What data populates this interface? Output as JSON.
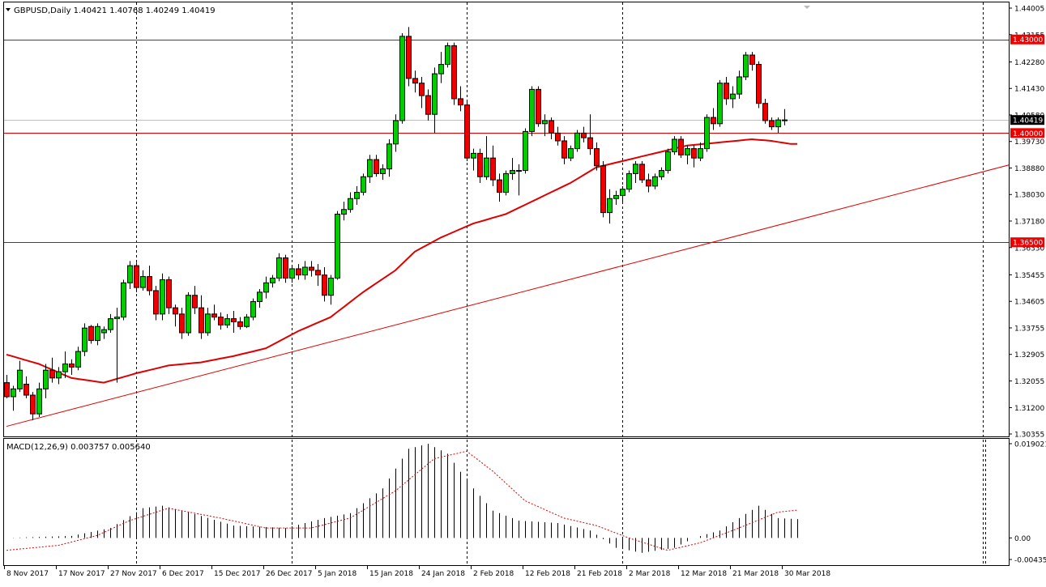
{
  "chart_data": {
    "type": "candlestick",
    "symbol": "GBPUSD",
    "timeframe": "Daily",
    "header": "GBPUSD,Daily  1.40421 1.40768 1.40249 1.40419",
    "ohlc_last": {
      "open": 1.40421,
      "high": 1.40768,
      "low": 1.40249,
      "close": 1.40419
    },
    "price_axis": {
      "range": [
        1.30355,
        1.44005
      ],
      "ticks": [
        "1.44005",
        "1.43155",
        "1.42280",
        "1.41430",
        "1.40580",
        "1.39730",
        "1.38880",
        "1.38030",
        "1.37180",
        "1.36330",
        "1.35455",
        "1.34605",
        "1.33755",
        "1.32905",
        "1.32055",
        "1.31200",
        "1.30355"
      ]
    },
    "time_axis": {
      "labels": [
        "8 Nov 2017",
        "17 Nov 2017",
        "27 Nov 2017",
        "6 Dec 2017",
        "15 Dec 2017",
        "26 Dec 2017",
        "5 Jan 2018",
        "15 Jan 2018",
        "24 Jan 2018",
        "2 Feb 2018",
        "12 Feb 2018",
        "21 Feb 2018",
        "2 Mar 2018",
        "12 Mar 2018",
        "21 Mar 2018",
        "30 Mar 2018"
      ]
    },
    "horizontal_levels": [
      {
        "price": 1.43,
        "label": "1.43000"
      },
      {
        "price": 1.4,
        "label": "1.40000"
      },
      {
        "price": 1.365,
        "label": "1.36500"
      }
    ],
    "current_price_label": "1.40419",
    "trendline": {
      "start": {
        "bar": 0,
        "price": 1.306
      },
      "end": {
        "bar": 120,
        "price": 1.371
      }
    },
    "candles": [
      [
        1.32,
        1.3225,
        1.315,
        1.3155
      ],
      [
        1.3155,
        1.319,
        1.311,
        1.318
      ],
      [
        1.318,
        1.327,
        1.317,
        1.324
      ],
      [
        1.3195,
        1.322,
        1.315,
        1.316
      ],
      [
        1.316,
        1.317,
        1.308,
        1.31
      ],
      [
        1.31,
        1.32,
        1.309,
        1.318
      ],
      [
        1.318,
        1.326,
        1.315,
        1.324
      ],
      [
        1.324,
        1.328,
        1.32,
        1.3215
      ],
      [
        1.3215,
        1.325,
        1.3195,
        1.3235
      ],
      [
        1.3235,
        1.33,
        1.3215,
        1.326
      ],
      [
        1.326,
        1.3275,
        1.3225,
        1.325
      ],
      [
        1.325,
        1.3315,
        1.324,
        1.33
      ],
      [
        1.33,
        1.339,
        1.3285,
        1.3375
      ],
      [
        1.338,
        1.3385,
        1.3325,
        1.3335
      ],
      [
        1.3335,
        1.339,
        1.332,
        1.338
      ],
      [
        1.336,
        1.338,
        1.334,
        1.337
      ],
      [
        1.337,
        1.342,
        1.336,
        1.3405
      ],
      [
        1.3405,
        1.344,
        1.32,
        1.341
      ],
      [
        1.341,
        1.353,
        1.34,
        1.352
      ],
      [
        1.352,
        1.359,
        1.35,
        1.3575
      ],
      [
        1.3575,
        1.3585,
        1.349,
        1.3505
      ],
      [
        1.3505,
        1.356,
        1.3495,
        1.354
      ],
      [
        1.354,
        1.3575,
        1.348,
        1.3495
      ],
      [
        1.3495,
        1.351,
        1.34,
        1.342
      ],
      [
        1.342,
        1.355,
        1.34,
        1.353
      ],
      [
        1.353,
        1.354,
        1.342,
        1.344
      ],
      [
        1.344,
        1.345,
        1.338,
        1.342
      ],
      [
        1.342,
        1.344,
        1.334,
        1.336
      ],
      [
        1.336,
        1.349,
        1.335,
        1.348
      ],
      [
        1.348,
        1.351,
        1.342,
        1.344
      ],
      [
        1.344,
        1.348,
        1.334,
        1.336
      ],
      [
        1.336,
        1.344,
        1.335,
        1.342
      ],
      [
        1.342,
        1.345,
        1.34,
        1.341
      ],
      [
        1.341,
        1.3425,
        1.337,
        1.3385
      ],
      [
        1.3385,
        1.342,
        1.3375,
        1.3405
      ],
      [
        1.3405,
        1.343,
        1.336,
        1.3395
      ],
      [
        1.3395,
        1.341,
        1.337,
        1.338
      ],
      [
        1.338,
        1.342,
        1.3375,
        1.341
      ],
      [
        1.341,
        1.347,
        1.34,
        1.346
      ],
      [
        1.346,
        1.35,
        1.344,
        1.349
      ],
      [
        1.349,
        1.354,
        1.347,
        1.352
      ],
      [
        1.352,
        1.3545,
        1.3505,
        1.3535
      ],
      [
        1.3535,
        1.3615,
        1.3525,
        1.36
      ],
      [
        1.36,
        1.361,
        1.352,
        1.3535
      ],
      [
        1.3535,
        1.3575,
        1.352,
        1.3565
      ],
      [
        1.3565,
        1.358,
        1.353,
        1.3545
      ],
      [
        1.3545,
        1.359,
        1.353,
        1.357
      ],
      [
        1.357,
        1.359,
        1.354,
        1.356
      ],
      [
        1.356,
        1.358,
        1.351,
        1.3545
      ],
      [
        1.3545,
        1.357,
        1.346,
        1.348
      ],
      [
        1.348,
        1.3545,
        1.345,
        1.3535
      ],
      [
        1.3535,
        1.375,
        1.353,
        1.374
      ],
      [
        1.374,
        1.378,
        1.372,
        1.3755
      ],
      [
        1.3755,
        1.381,
        1.3745,
        1.379
      ],
      [
        1.379,
        1.383,
        1.377,
        1.381
      ],
      [
        1.381,
        1.387,
        1.38,
        1.386
      ],
      [
        1.386,
        1.393,
        1.384,
        1.3915
      ],
      [
        1.3915,
        1.393,
        1.386,
        1.387
      ],
      [
        1.387,
        1.39,
        1.385,
        1.3885
      ],
      [
        1.3885,
        1.398,
        1.386,
        1.3965
      ],
      [
        1.3965,
        1.406,
        1.394,
        1.404
      ],
      [
        1.404,
        1.432,
        1.403,
        1.431
      ],
      [
        1.431,
        1.434,
        1.415,
        1.4175
      ],
      [
        1.4175,
        1.42,
        1.413,
        1.416
      ],
      [
        1.416,
        1.418,
        1.408,
        1.412
      ],
      [
        1.412,
        1.414,
        1.404,
        1.406
      ],
      [
        1.406,
        1.421,
        1.4,
        1.419
      ],
      [
        1.419,
        1.426,
        1.416,
        1.422
      ],
      [
        1.422,
        1.429,
        1.421,
        1.428
      ],
      [
        1.428,
        1.429,
        1.409,
        1.411
      ],
      [
        1.411,
        1.415,
        1.407,
        1.409
      ],
      [
        1.409,
        1.41,
        1.391,
        1.392
      ],
      [
        1.392,
        1.395,
        1.388,
        1.3935
      ],
      [
        1.3935,
        1.395,
        1.384,
        1.386
      ],
      [
        1.386,
        1.399,
        1.385,
        1.392
      ],
      [
        1.392,
        1.396,
        1.383,
        1.385
      ],
      [
        1.385,
        1.387,
        1.378,
        1.381
      ],
      [
        1.381,
        1.388,
        1.38,
        1.387
      ],
      [
        1.387,
        1.392,
        1.385,
        1.388
      ],
      [
        1.388,
        1.39,
        1.38,
        1.388
      ],
      [
        1.388,
        1.4015,
        1.387,
        1.4005
      ],
      [
        1.4005,
        1.415,
        1.399,
        1.414
      ],
      [
        1.414,
        1.415,
        1.402,
        1.403
      ],
      [
        1.403,
        1.406,
        1.399,
        1.404
      ],
      [
        1.404,
        1.405,
        1.398,
        1.4
      ],
      [
        1.4,
        1.402,
        1.396,
        1.3975
      ],
      [
        1.3975,
        1.399,
        1.39,
        1.392
      ],
      [
        1.392,
        1.396,
        1.391,
        1.395
      ],
      [
        1.395,
        1.401,
        1.394,
        1.4
      ],
      [
        1.4,
        1.402,
        1.397,
        1.3985
      ],
      [
        1.3985,
        1.406,
        1.393,
        1.395
      ],
      [
        1.395,
        1.397,
        1.388,
        1.3895
      ],
      [
        1.3895,
        1.391,
        1.373,
        1.3745
      ],
      [
        1.3745,
        1.382,
        1.371,
        1.379
      ],
      [
        1.379,
        1.3815,
        1.377,
        1.38
      ],
      [
        1.38,
        1.383,
        1.378,
        1.382
      ],
      [
        1.382,
        1.388,
        1.381,
        1.387
      ],
      [
        1.387,
        1.391,
        1.384,
        1.39
      ],
      [
        1.39,
        1.391,
        1.384,
        1.385
      ],
      [
        1.385,
        1.387,
        1.381,
        1.383
      ],
      [
        1.383,
        1.387,
        1.382,
        1.386
      ],
      [
        1.386,
        1.389,
        1.385,
        1.388
      ],
      [
        1.388,
        1.395,
        1.387,
        1.394
      ],
      [
        1.394,
        1.399,
        1.393,
        1.398
      ],
      [
        1.398,
        1.399,
        1.392,
        1.393
      ],
      [
        1.393,
        1.396,
        1.39,
        1.395
      ],
      [
        1.395,
        1.396,
        1.389,
        1.392
      ],
      [
        1.392,
        1.397,
        1.391,
        1.395
      ],
      [
        1.395,
        1.406,
        1.394,
        1.405
      ],
      [
        1.405,
        1.408,
        1.401,
        1.403
      ],
      [
        1.403,
        1.417,
        1.402,
        1.416
      ],
      [
        1.416,
        1.418,
        1.409,
        1.411
      ],
      [
        1.411,
        1.415,
        1.408,
        1.4125
      ],
      [
        1.4125,
        1.42,
        1.411,
        1.418
      ],
      [
        1.418,
        1.426,
        1.417,
        1.425
      ],
      [
        1.425,
        1.426,
        1.42,
        1.422
      ],
      [
        1.422,
        1.423,
        1.408,
        1.4095
      ],
      [
        1.4095,
        1.411,
        1.403,
        1.404
      ],
      [
        1.404,
        1.405,
        1.401,
        1.402
      ],
      [
        1.402,
        1.405,
        1.4,
        1.4042
      ],
      [
        1.40421,
        1.40768,
        1.40249,
        1.40419
      ]
    ],
    "moving_average": {
      "knots": [
        [
          0,
          1.329
        ],
        [
          5,
          1.326
        ],
        [
          10,
          1.3215
        ],
        [
          15,
          1.32
        ],
        [
          20,
          1.323
        ],
        [
          25,
          1.3255
        ],
        [
          30,
          1.3265
        ],
        [
          35,
          1.3285
        ],
        [
          40,
          1.331
        ],
        [
          45,
          1.3365
        ],
        [
          50,
          1.341
        ],
        [
          55,
          1.349
        ],
        [
          60,
          1.356
        ],
        [
          63,
          1.362
        ],
        [
          67,
          1.3665
        ],
        [
          72,
          1.371
        ],
        [
          77,
          1.374
        ],
        [
          82,
          1.379
        ],
        [
          87,
          1.384
        ],
        [
          91,
          1.389
        ],
        [
          95,
          1.391
        ],
        [
          100,
          1.3935
        ],
        [
          105,
          1.396
        ],
        [
          110,
          1.397
        ],
        [
          115,
          1.398
        ],
        [
          118,
          1.3975
        ],
        [
          121,
          1.3965
        ],
        [
          122,
          1.3965
        ]
      ]
    },
    "macd": {
      "label": "MACD(12,26,9) 0.003757 0.005640",
      "ticks": [
        "0.019021",
        "0.00",
        "-0.004351"
      ],
      "range": [
        -0.004351,
        0.019021
      ],
      "histogram_knots": [
        [
          0,
          0.0
        ],
        [
          10,
          0.0004
        ],
        [
          16,
          0.002
        ],
        [
          21,
          0.006
        ],
        [
          24,
          0.0065
        ],
        [
          28,
          0.0052
        ],
        [
          35,
          0.0025
        ],
        [
          43,
          0.002
        ],
        [
          49,
          0.004
        ],
        [
          53,
          0.005
        ],
        [
          58,
          0.01
        ],
        [
          62,
          0.018
        ],
        [
          65,
          0.019
        ],
        [
          68,
          0.017
        ],
        [
          71,
          0.0115
        ],
        [
          75,
          0.0055
        ],
        [
          79,
          0.0035
        ],
        [
          85,
          0.003
        ],
        [
          90,
          0.0015
        ],
        [
          94,
          -0.002
        ],
        [
          98,
          -0.003
        ],
        [
          103,
          -0.002
        ],
        [
          106,
          0.0
        ],
        [
          110,
          0.0015
        ],
        [
          113,
          0.004
        ],
        [
          116,
          0.0065
        ],
        [
          119,
          0.004
        ],
        [
          122,
          0.0038
        ]
      ],
      "signal_knots": [
        [
          0,
          -0.0025
        ],
        [
          8,
          -0.0015
        ],
        [
          14,
          0.0005
        ],
        [
          19,
          0.0035
        ],
        [
          25,
          0.006
        ],
        [
          33,
          0.004
        ],
        [
          40,
          0.002
        ],
        [
          47,
          0.002
        ],
        [
          53,
          0.004
        ],
        [
          60,
          0.0095
        ],
        [
          66,
          0.016
        ],
        [
          71,
          0.0175
        ],
        [
          75,
          0.0135
        ],
        [
          80,
          0.0075
        ],
        [
          86,
          0.004
        ],
        [
          91,
          0.0025
        ],
        [
          96,
          0.0
        ],
        [
          102,
          -0.0025
        ],
        [
          107,
          -0.001
        ],
        [
          113,
          0.002
        ],
        [
          119,
          0.0052
        ],
        [
          122,
          0.0056
        ]
      ]
    }
  }
}
